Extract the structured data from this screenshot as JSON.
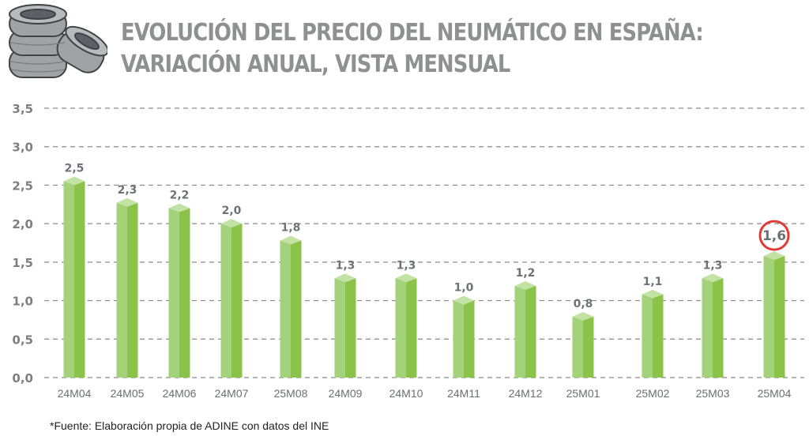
{
  "header": {
    "title_line1": "EVOLUCIÓN DEL PRECIO DEL NEUMÁTICO EN ESPAÑA:",
    "title_line2": "VARIACIÓN ANUAL, VISTA MENSUAL",
    "logo_icon": "tire-stack-icon"
  },
  "footer": {
    "source": "*Fuente: Elaboración propia de ADINE con datos del INE"
  },
  "colors": {
    "bar_light": "#a3d27a",
    "bar_dark": "#8bc34a",
    "bar_top": "#c2e3a4",
    "grid": "#8a8a8a",
    "text_gray": "#8f9091",
    "highlight_circle": "#e53935"
  },
  "chart_data": {
    "type": "bar",
    "title": "EVOLUCIÓN DEL PRECIO DEL NEUMÁTICO EN ESPAÑA: VARIACIÓN ANUAL, VISTA MENSUAL",
    "xlabel": "",
    "ylabel": "",
    "ylim": [
      0,
      3.5
    ],
    "yticks": [
      0,
      0.5,
      1.0,
      1.5,
      2.0,
      2.5,
      3.0,
      3.5
    ],
    "ytick_labels": [
      "0,0",
      "0,5",
      "1,0",
      "1,5",
      "2,0",
      "2,5",
      "3,0",
      "3,5"
    ],
    "grid": true,
    "grid_style": "dashed",
    "categories": [
      "24M04",
      "24M05",
      "24M06",
      "24M07",
      "25M08",
      "24M09",
      "24M10",
      "24M11",
      "24M12",
      "25M01",
      "25M02",
      "25M03",
      "25M04"
    ],
    "values": [
      2.55,
      2.27,
      2.2,
      2.0,
      1.78,
      1.29,
      1.29,
      1.0,
      1.19,
      0.79,
      1.08,
      1.29,
      1.58
    ],
    "data_labels": [
      "2,5",
      "2,3",
      "2,2",
      "2,0",
      "1,8",
      "1,3",
      "1,3",
      "1,0",
      "1,2",
      "0,8",
      "1,1",
      "1,3",
      "1,6"
    ],
    "highlighted_index": 12,
    "legend": "none"
  }
}
